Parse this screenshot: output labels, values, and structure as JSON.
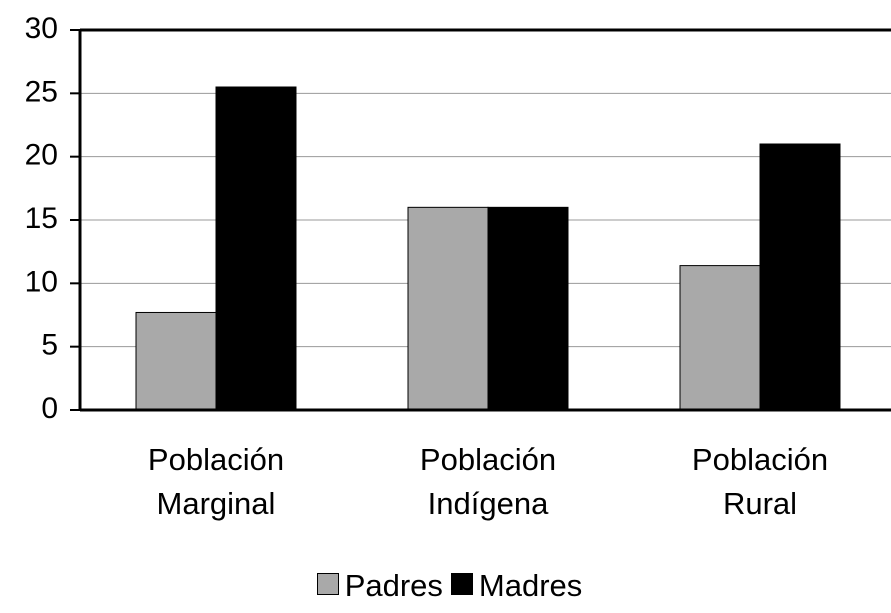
{
  "chart_data": {
    "type": "bar",
    "categories": [
      "Población Marginal",
      "Población Indígena",
      "Población Rural"
    ],
    "series": [
      {
        "name": "Padres",
        "color": "#a9a9a9",
        "values": [
          7.7,
          16,
          11.4
        ]
      },
      {
        "name": "Madres",
        "color": "#000000",
        "values": [
          25.5,
          16,
          21
        ]
      }
    ],
    "ylim": [
      0,
      30
    ],
    "yticks": [
      0,
      5,
      10,
      15,
      20,
      25,
      30
    ],
    "grid": true,
    "legend": "bottom"
  }
}
